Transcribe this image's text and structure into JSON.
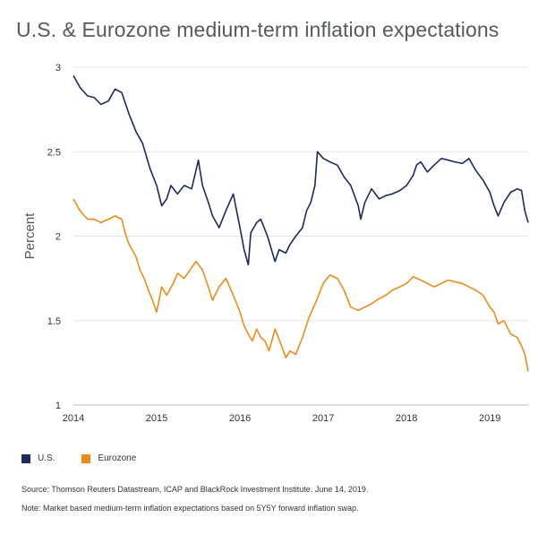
{
  "title": "U.S. & Eurozone medium-term inflation expectations",
  "source": "Source: Thomson Reuters Datastream, ICAP and BlackRock Investment Institute. June 14, 2019.",
  "note": "Note: Market based medium-term inflation expectations based on 5Y5Y forward inflation swap.",
  "colors": {
    "us": "#1b2a5e",
    "eurozone": "#ec8b1b",
    "grid": "#e6e6e6"
  },
  "chart_data": {
    "type": "line",
    "title": "U.S. & Eurozone medium-term inflation expectations",
    "xlabel": "",
    "ylabel": "Percent",
    "xlim": [
      2014.0,
      2019.46
    ],
    "ylim": [
      1,
      3
    ],
    "xticks": [
      "2014",
      "2015",
      "2016",
      "2017",
      "2018",
      "2019"
    ],
    "yticks": [
      "1",
      "1.5",
      "2",
      "2.5",
      "3"
    ],
    "grid": "horizontal",
    "legend_position": "bottom-left",
    "series": [
      {
        "name": "U.S.",
        "x": [
          2014.0,
          2014.08,
          2014.17,
          2014.25,
          2014.33,
          2014.42,
          2014.5,
          2014.58,
          2014.67,
          2014.75,
          2014.83,
          2014.92,
          2015.0,
          2015.06,
          2015.12,
          2015.17,
          2015.25,
          2015.33,
          2015.42,
          2015.5,
          2015.55,
          2015.62,
          2015.67,
          2015.75,
          2015.83,
          2015.92,
          2016.0,
          2016.05,
          2016.1,
          2016.13,
          2016.2,
          2016.25,
          2016.33,
          2016.42,
          2016.47,
          2016.55,
          2016.6,
          2016.67,
          2016.75,
          2016.8,
          2016.85,
          2016.9,
          2016.93,
          2017.0,
          2017.08,
          2017.17,
          2017.25,
          2017.33,
          2017.42,
          2017.45,
          2017.5,
          2017.58,
          2017.67,
          2017.75,
          2017.83,
          2017.92,
          2018.0,
          2018.08,
          2018.12,
          2018.17,
          2018.25,
          2018.33,
          2018.42,
          2018.5,
          2018.58,
          2018.67,
          2018.75,
          2018.83,
          2018.92,
          2019.0,
          2019.05,
          2019.1,
          2019.17,
          2019.25,
          2019.33,
          2019.38,
          2019.42,
          2019.46
        ],
        "y": [
          2.95,
          2.88,
          2.83,
          2.82,
          2.78,
          2.8,
          2.87,
          2.85,
          2.72,
          2.62,
          2.55,
          2.4,
          2.3,
          2.18,
          2.22,
          2.3,
          2.25,
          2.3,
          2.28,
          2.45,
          2.3,
          2.2,
          2.12,
          2.05,
          2.15,
          2.25,
          2.05,
          1.92,
          1.83,
          2.02,
          2.08,
          2.1,
          2.0,
          1.85,
          1.92,
          1.9,
          1.95,
          2.0,
          2.05,
          2.15,
          2.2,
          2.3,
          2.5,
          2.46,
          2.44,
          2.42,
          2.35,
          2.3,
          2.18,
          2.1,
          2.2,
          2.28,
          2.22,
          2.24,
          2.25,
          2.27,
          2.3,
          2.36,
          2.42,
          2.44,
          2.38,
          2.42,
          2.46,
          2.45,
          2.44,
          2.43,
          2.46,
          2.39,
          2.33,
          2.26,
          2.18,
          2.12,
          2.2,
          2.26,
          2.28,
          2.27,
          2.15,
          2.08
        ]
      },
      {
        "name": "Eurozone",
        "x": [
          2014.0,
          2014.08,
          2014.17,
          2014.25,
          2014.33,
          2014.42,
          2014.5,
          2014.58,
          2014.62,
          2014.67,
          2014.75,
          2014.8,
          2014.85,
          2014.9,
          2014.95,
          2015.0,
          2015.06,
          2015.12,
          2015.2,
          2015.25,
          2015.33,
          2015.4,
          2015.47,
          2015.55,
          2015.62,
          2015.67,
          2015.75,
          2015.83,
          2015.92,
          2016.0,
          2016.05,
          2016.1,
          2016.15,
          2016.2,
          2016.25,
          2016.3,
          2016.35,
          2016.42,
          2016.5,
          2016.55,
          2016.6,
          2016.67,
          2016.75,
          2016.83,
          2016.92,
          2017.0,
          2017.08,
          2017.17,
          2017.25,
          2017.33,
          2017.42,
          2017.5,
          2017.58,
          2017.67,
          2017.75,
          2017.83,
          2017.92,
          2018.0,
          2018.08,
          2018.17,
          2018.25,
          2018.33,
          2018.42,
          2018.5,
          2018.58,
          2018.67,
          2018.75,
          2018.83,
          2018.92,
          2019.0,
          2019.05,
          2019.1,
          2019.17,
          2019.25,
          2019.33,
          2019.38,
          2019.42,
          2019.46
        ],
        "y": [
          2.22,
          2.15,
          2.1,
          2.1,
          2.08,
          2.1,
          2.12,
          2.1,
          2.02,
          1.95,
          1.88,
          1.8,
          1.75,
          1.68,
          1.62,
          1.55,
          1.7,
          1.65,
          1.72,
          1.78,
          1.75,
          1.8,
          1.85,
          1.8,
          1.7,
          1.62,
          1.7,
          1.75,
          1.65,
          1.55,
          1.47,
          1.42,
          1.38,
          1.45,
          1.4,
          1.38,
          1.32,
          1.45,
          1.35,
          1.28,
          1.32,
          1.3,
          1.4,
          1.52,
          1.62,
          1.72,
          1.77,
          1.75,
          1.68,
          1.58,
          1.56,
          1.58,
          1.6,
          1.63,
          1.65,
          1.68,
          1.7,
          1.72,
          1.76,
          1.74,
          1.72,
          1.7,
          1.72,
          1.74,
          1.73,
          1.72,
          1.7,
          1.68,
          1.65,
          1.58,
          1.55,
          1.48,
          1.5,
          1.42,
          1.4,
          1.35,
          1.3,
          1.2
        ]
      }
    ]
  }
}
